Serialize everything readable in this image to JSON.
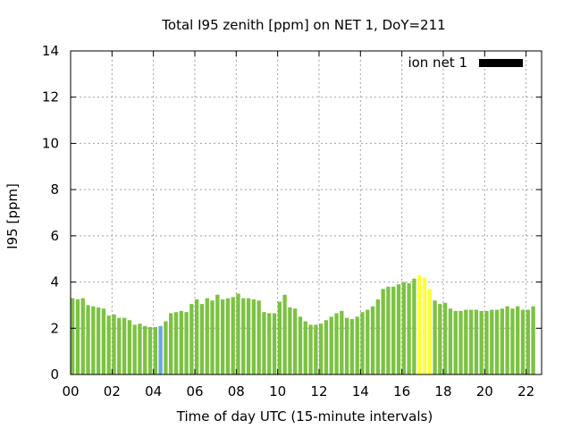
{
  "chart_data": {
    "type": "bar",
    "title": "Total I95 zenith [ppm] on NET 1, DoY=211",
    "xlabel": "Time of day UTC (15-minute intervals)",
    "ylabel": "I95 [ppm]",
    "legend_label": "ion net 1",
    "legend_position": "top-right",
    "legend_color": "#000000",
    "grid": true,
    "xlim": [
      0,
      22.75
    ],
    "ylim": [
      0,
      14
    ],
    "x_ticks": [
      "00",
      "02",
      "04",
      "06",
      "08",
      "10",
      "12",
      "14",
      "16",
      "18",
      "20",
      "22"
    ],
    "y_ticks": [
      "0",
      "2",
      "4",
      "6",
      "8",
      "10",
      "12",
      "14"
    ],
    "bar_interval_hours": 0.25,
    "colors": {
      "normal": "#7cc242",
      "low": "#6aa7e0",
      "high": "#ffff33"
    },
    "values": [
      3.3,
      3.25,
      3.3,
      3.0,
      2.95,
      2.9,
      2.85,
      2.55,
      2.6,
      2.45,
      2.45,
      2.35,
      2.15,
      2.2,
      2.1,
      2.05,
      2.05,
      2.1,
      2.3,
      2.65,
      2.7,
      2.75,
      2.7,
      3.05,
      3.25,
      3.05,
      3.3,
      3.2,
      3.45,
      3.25,
      3.3,
      3.35,
      3.5,
      3.3,
      3.3,
      3.25,
      3.2,
      2.7,
      2.65,
      2.65,
      3.15,
      3.45,
      2.9,
      2.85,
      2.5,
      2.3,
      2.15,
      2.15,
      2.2,
      2.35,
      2.5,
      2.65,
      2.75,
      2.45,
      2.4,
      2.5,
      2.7,
      2.8,
      2.95,
      3.25,
      3.7,
      3.8,
      3.8,
      3.9,
      4.0,
      3.95,
      4.15,
      4.3,
      4.2,
      3.7,
      3.2,
      3.05,
      3.1,
      2.85,
      2.75,
      2.75,
      2.8,
      2.8,
      2.8,
      2.75,
      2.75,
      2.8,
      2.8,
      2.85,
      2.95,
      2.85,
      2.95,
      2.8,
      2.8,
      2.95
    ],
    "bar_colors": [
      "normal",
      "normal",
      "normal",
      "normal",
      "normal",
      "normal",
      "normal",
      "normal",
      "normal",
      "normal",
      "normal",
      "normal",
      "normal",
      "normal",
      "normal",
      "normal",
      "normal",
      "low",
      "normal",
      "normal",
      "normal",
      "normal",
      "normal",
      "normal",
      "normal",
      "normal",
      "normal",
      "normal",
      "normal",
      "normal",
      "normal",
      "normal",
      "normal",
      "normal",
      "normal",
      "normal",
      "normal",
      "normal",
      "normal",
      "normal",
      "normal",
      "normal",
      "normal",
      "normal",
      "normal",
      "normal",
      "normal",
      "normal",
      "normal",
      "normal",
      "normal",
      "normal",
      "normal",
      "normal",
      "normal",
      "normal",
      "normal",
      "normal",
      "normal",
      "normal",
      "normal",
      "normal",
      "normal",
      "normal",
      "normal",
      "normal",
      "normal",
      "high",
      "high",
      "high",
      "normal",
      "normal",
      "normal",
      "normal",
      "normal",
      "normal",
      "normal",
      "normal",
      "normal",
      "normal",
      "normal",
      "normal",
      "normal",
      "normal",
      "normal",
      "normal",
      "normal",
      "normal",
      "normal",
      "normal"
    ]
  }
}
